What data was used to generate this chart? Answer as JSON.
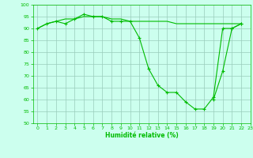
{
  "x": [
    0,
    1,
    2,
    3,
    4,
    5,
    6,
    7,
    8,
    9,
    10,
    11,
    12,
    13,
    14,
    15,
    16,
    17,
    18,
    19,
    20,
    21,
    22,
    23
  ],
  "line1": [
    90,
    92,
    93,
    92,
    94,
    96,
    95,
    95,
    93,
    93,
    93,
    86,
    73,
    66,
    63,
    63,
    59,
    56,
    56,
    61,
    90,
    90,
    92,
    null
  ],
  "line2": [
    90,
    92,
    93,
    94,
    94,
    95,
    95,
    95,
    94,
    94,
    93,
    93,
    93,
    93,
    93,
    92,
    92,
    92,
    92,
    92,
    92,
    92,
    92,
    null
  ],
  "line3": [
    null,
    null,
    null,
    null,
    null,
    null,
    null,
    null,
    null,
    null,
    null,
    null,
    null,
    null,
    null,
    null,
    null,
    null,
    null,
    60,
    72,
    90,
    92,
    null
  ],
  "line_color": "#00bb00",
  "marker": "+",
  "bg_color": "#ccffee",
  "grid_color": "#99ccbb",
  "xlabel": "Humidité relative (%)",
  "ylim": [
    50,
    100
  ],
  "xlim": [
    -0.5,
    23
  ],
  "yticks": [
    50,
    55,
    60,
    65,
    70,
    75,
    80,
    85,
    90,
    95,
    100
  ],
  "xticks": [
    0,
    1,
    2,
    3,
    4,
    5,
    6,
    7,
    8,
    9,
    10,
    11,
    12,
    13,
    14,
    15,
    16,
    17,
    18,
    19,
    20,
    21,
    22,
    23
  ]
}
